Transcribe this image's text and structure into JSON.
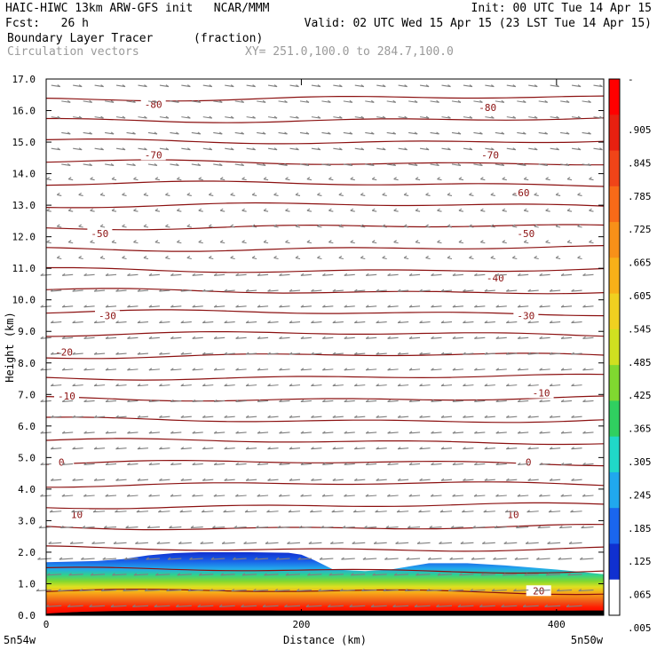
{
  "header": {
    "title_left": "HAIC-HIWC 13km ARW-GFS init   NCAR/MMM",
    "init": "Init: 00 UTC Tue 14 Apr 15",
    "fcst": "Fcst:   26 h",
    "valid": "Valid: 02 UTC Wed 15 Apr 15 (23 LST Tue 14 Apr 15)",
    "field1_name": "Boundary Layer Tracer",
    "field1_units": "(fraction)",
    "field2_name": "Circulation vectors",
    "xsection": "XY= 251.0,100.0 to 284.7,100.0"
  },
  "colors": {
    "contour": "#8b1010",
    "vectors": "#808080",
    "scale": [
      "#ffffff",
      "#1030d0",
      "#1a66ee",
      "#20a8ee",
      "#20d8c8",
      "#30d060",
      "#80d830",
      "#d0e020",
      "#f0d020",
      "#f8b018",
      "#f89018",
      "#f86a18",
      "#f04418",
      "#e82010",
      "#ff0000"
    ]
  },
  "chart_data": {
    "type": "heatmap",
    "title": "Boundary Layer Tracer",
    "xlabel": "Distance (km)",
    "ylabel": "Height (km)",
    "xlim": [
      0,
      437
    ],
    "ylim": [
      0,
      17
    ],
    "x_ticks": [
      0,
      200,
      400
    ],
    "y_ticks": [
      "0.0",
      "1.0",
      "2.0",
      "3.0",
      "4.0",
      "5.0",
      "6.0",
      "7.0",
      "8.0",
      "9.0",
      "10.0",
      "11.0",
      "12.0",
      "13.0",
      "14.0",
      "15.0",
      "16.0",
      "17.0"
    ],
    "x_end_labels": {
      "left": "5n54w",
      "right": "5n50w"
    },
    "colorbar_labels": [
      "-",
      ".905",
      ".845",
      ".785",
      ".725",
      ".665",
      ".605",
      ".545",
      ".485",
      ".425",
      ".365",
      ".305",
      ".245",
      ".185",
      ".125",
      ".065",
      ".005"
    ],
    "tracer_top_km": {
      "x": [
        0,
        40,
        60,
        80,
        100,
        120,
        160,
        190,
        200,
        210,
        225,
        250,
        270,
        285,
        300,
        330,
        360,
        400,
        437
      ],
      "top": [
        1.68,
        1.72,
        1.78,
        1.9,
        1.97,
        2.0,
        2.0,
        1.98,
        1.92,
        1.75,
        1.45,
        1.4,
        1.45,
        1.55,
        1.65,
        1.65,
        1.58,
        1.45,
        1.3
      ]
    },
    "temperature_contours": {
      "levels": [
        20,
        10,
        0,
        -10,
        -20,
        -30,
        -40,
        -50,
        -60,
        -70,
        -80
      ],
      "labels": [
        {
          "text": "20",
          "x": 386,
          "y": 0.78
        },
        {
          "text": "10",
          "x": 24,
          "y": 3.2
        },
        {
          "text": "10",
          "x": 366,
          "y": 3.2
        },
        {
          "text": "0",
          "x": 12,
          "y": 4.85
        },
        {
          "text": "0",
          "x": 378,
          "y": 4.85
        },
        {
          "text": "-10",
          "x": 16,
          "y": 6.95
        },
        {
          "text": "-10",
          "x": 388,
          "y": 7.05
        },
        {
          "text": "-20",
          "x": 14,
          "y": 8.35
        },
        {
          "text": "-30",
          "x": 48,
          "y": 9.5
        },
        {
          "text": "-30",
          "x": 376,
          "y": 9.5
        },
        {
          "text": "-40",
          "x": 352,
          "y": 10.7
        },
        {
          "text": "-50",
          "x": 42,
          "y": 12.1
        },
        {
          "text": "-50",
          "x": 376,
          "y": 12.1
        },
        {
          "text": "-60",
          "x": 372,
          "y": 13.4
        },
        {
          "text": "-70",
          "x": 84,
          "y": 14.6
        },
        {
          "text": "-70",
          "x": 348,
          "y": 14.6
        },
        {
          "text": "-80",
          "x": 84,
          "y": 16.2
        },
        {
          "text": "-80",
          "x": 346,
          "y": 16.1
        }
      ]
    }
  }
}
